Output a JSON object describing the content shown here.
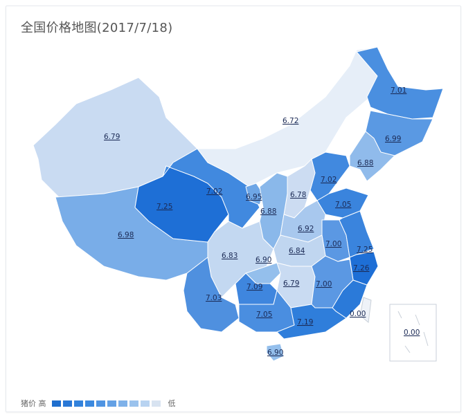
{
  "title": "全国价格地图(2017/7/18)",
  "legend": {
    "label": "猪价",
    "high": "高",
    "low": "低",
    "colors": [
      "#1f6fce",
      "#2a78d6",
      "#3282dc",
      "#3b89df",
      "#4f94e2",
      "#64a1e5",
      "#7eb1e9",
      "#9ac2ed",
      "#b8d3f1",
      "#d8e3f1"
    ]
  },
  "regions": [
    {
      "label": "6.79",
      "color": "#c9dbf2"
    },
    {
      "label": "6.98",
      "color": "#79ade8"
    },
    {
      "label": "7.25",
      "color": "#1e6fd6"
    },
    {
      "label": "7.02",
      "color": "#4189df"
    },
    {
      "label": "6.72",
      "color": "#e6eef8"
    },
    {
      "label": "7.01",
      "color": "#4a8fe0"
    },
    {
      "label": "6.99",
      "color": "#5a99e3"
    },
    {
      "label": "6.88",
      "color": "#90bbeb"
    },
    {
      "label": "7.02",
      "color": "#4189df"
    },
    {
      "label": "6.78",
      "color": "#ccdcf2"
    },
    {
      "label": "7.05",
      "color": "#3a84dd"
    },
    {
      "label": "6.95",
      "color": "#6ea6e6"
    },
    {
      "label": "6.88",
      "color": "#8ab8ea"
    },
    {
      "label": "6.92",
      "color": "#a8c8ee"
    },
    {
      "label": "7.00",
      "color": "#5b98e3"
    },
    {
      "label": "7.25",
      "color": "#3a84dd"
    },
    {
      "label": "7.26",
      "color": "#1e6fd6"
    },
    {
      "label": "6.84",
      "color": "#c0d6f0"
    },
    {
      "label": "6.83",
      "color": "#c3d8f1"
    },
    {
      "label": "6.90",
      "color": "#94bfec"
    },
    {
      "label": "7.03",
      "color": "#4f90df"
    },
    {
      "label": "7.09",
      "color": "#3f86de"
    },
    {
      "label": "6.79",
      "color": "#c9dbf2"
    },
    {
      "label": "7.00",
      "color": "#5b98e3"
    },
    {
      "label": "",
      "color": "#2b7ad9"
    },
    {
      "label": "7.05",
      "color": "#4a8ee0"
    },
    {
      "label": "7.19",
      "color": "#2f7edb"
    },
    {
      "label": "6.90",
      "color": "#94bfec"
    },
    {
      "label": "0.00",
      "color": "#eef2f8"
    }
  ],
  "south_sea_inset": {
    "label": "0.00"
  }
}
